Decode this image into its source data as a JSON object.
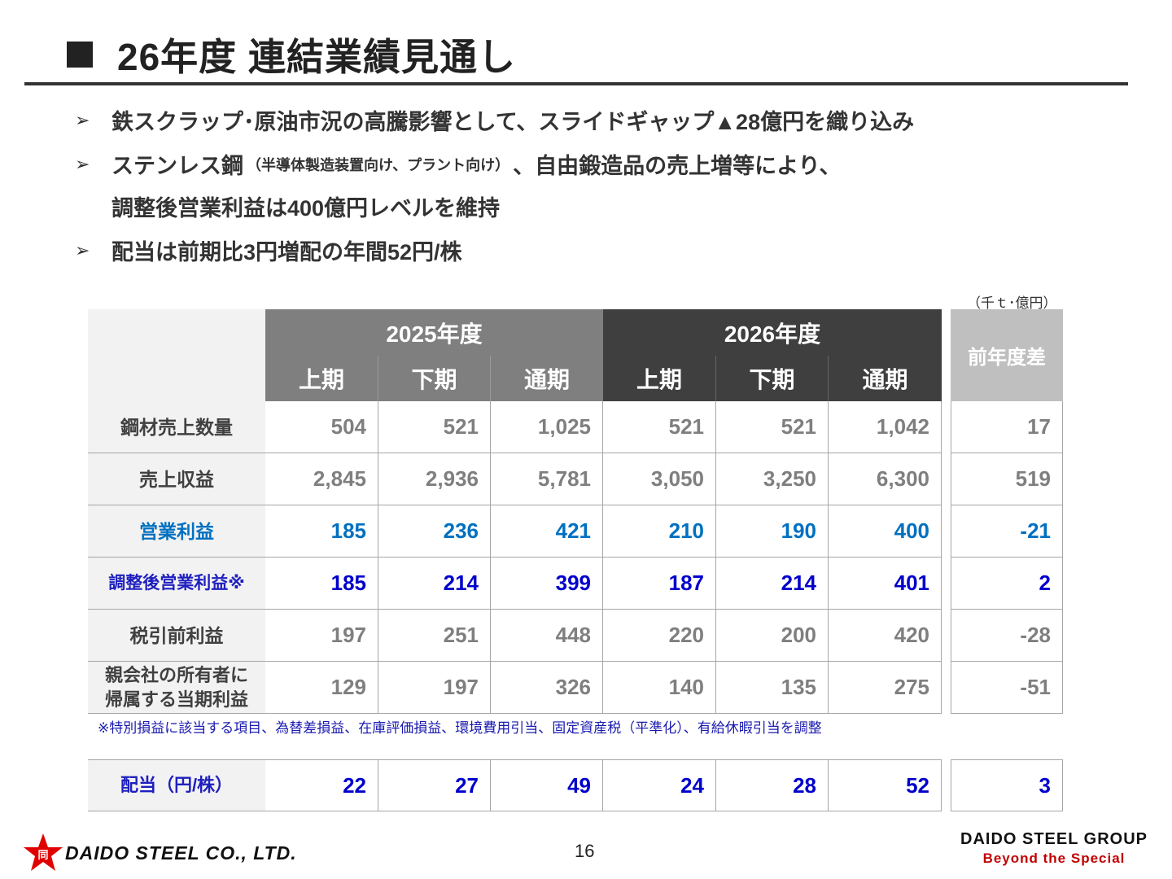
{
  "title": "26年度 連結業績見通し",
  "bullets": {
    "b1": "鉄スクラップ･原油市況の高騰影響として、スライドギャップ▲28億円を織り込み",
    "b2_main": "ステンレス鋼",
    "b2_small": "（半導体製造装置向け、プラント向け）",
    "b2_rest": "、自由鍛造品の売上増等により、",
    "b2_cont": "調整後営業利益は400億円レベルを維持",
    "b3": "配当は前期比3円増配の年間52円/株"
  },
  "unit": "（千ｔ･億円）",
  "table": {
    "group_2025": "2025年度",
    "group_2026": "2026年度",
    "diff_header": "前年度差",
    "sub_headers": [
      "上期",
      "下期",
      "通期",
      "上期",
      "下期",
      "通期"
    ],
    "rows": [
      {
        "label": "鋼材売上数量",
        "values": [
          "504",
          "521",
          "1,025",
          "521",
          "521",
          "1,042"
        ],
        "diff": "17"
      },
      {
        "label": "売上収益",
        "values": [
          "2,845",
          "2,936",
          "5,781",
          "3,050",
          "3,250",
          "6,300"
        ],
        "diff": "519"
      },
      {
        "label": "営業利益",
        "values": [
          "185",
          "236",
          "421",
          "210",
          "190",
          "400"
        ],
        "diff": "-21"
      },
      {
        "label": "調整後営業利益※",
        "values": [
          "185",
          "214",
          "399",
          "187",
          "214",
          "401"
        ],
        "diff": "2"
      },
      {
        "label": "税引前利益",
        "values": [
          "197",
          "251",
          "448",
          "220",
          "200",
          "420"
        ],
        "diff": "-28"
      },
      {
        "label_l1": "親会社の所有者に",
        "label_l2": "帰属する当期利益",
        "values": [
          "129",
          "197",
          "326",
          "140",
          "135",
          "275"
        ],
        "diff": "-51"
      }
    ],
    "footnote": "※特別損益に該当する項目、為替差損益、在庫評価損益、環境費用引当、固定資産税（平準化）、有給休暇引当を調整",
    "dividend": {
      "label": "配当（円/株）",
      "values": [
        "22",
        "27",
        "49",
        "24",
        "28",
        "52"
      ],
      "diff": "3"
    }
  },
  "footer": {
    "company": "DAIDO STEEL CO., LTD.",
    "logo_char": "同",
    "page": "16",
    "group_name": "DAIDO STEEL GROUP",
    "tagline": "Beyond the Special"
  },
  "colors": {
    "blue": "#0070c0",
    "navy": "#0000cc",
    "hdr2025": "#7f7f7f",
    "hdr2026": "#3f3f3f",
    "diff": "#bfbfbf",
    "brand_red": "#c00000"
  }
}
